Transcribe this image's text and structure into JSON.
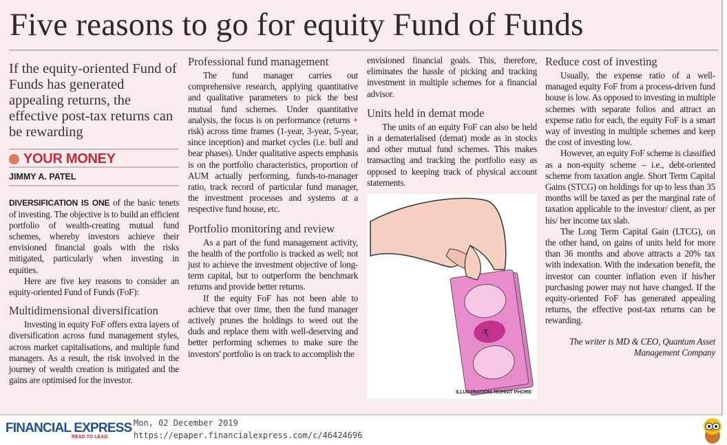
{
  "headline": "Five reasons to go for equity Fund of Funds",
  "deck": "If the equity-oriented Fund of Funds has generated appealing returns, the effective post-tax returns can be rewarding",
  "section": "YOUR MONEY",
  "byline": "JIMMY A. PATEL",
  "colors": {
    "background": "#f8ecec",
    "kicker": "#c8283c",
    "brand": "#1d4f91"
  },
  "col1": {
    "lead": "DIVERSIFICATION IS ONE",
    "intro": " of the basic tenets of investing. The objective is to build an efficient portfolio of wealth-creating mutual fund schemes, whereby investors achieve their envisioned financial goals with the risks mitigated, particularly when investing in equities.",
    "p2": "Here are five key reasons to consider an equity-oriented Fund of Funds (FoF):",
    "h1": "Multidimensional diversification",
    "p3": "Investing in equity FoF offers extra layers of diversification across fund management styles, across market capitalisations, and multiple fund managers. As a result, the risk involved in the journey of wealth creation is mitigated and the gains are optimised for the investor."
  },
  "col2": {
    "h1": "Professional fund management",
    "p1": "The fund manager carries out comprehensive research, applying quantitative and qualitative parameters to pick the best mutual fund schemes. Under quantitative analysis, the focus is on performance (returns + risk) across time frames (1-year, 3-year, 5-year, since inception) and market cycles (i.e. bull and bear phases). Under qualitative aspects emphasis is on the portfolio characteristics, proportion of AUM actually performing, funds-to-manager ratio, track record of particular fund manager, the investment processes and systems at a respective fund house, etc.",
    "h2": "Portfolio monitoring and review",
    "p2": "As a part of the fund management activity, the health of the portfolio is tracked as well; not just to achieve the investment objective of long-term capital, but to outperform the benchmark returns and provide better returns.",
    "p3": "If the equity FoF has not been able to achieve that over time, then the fund manager actively prunes the holdings to weed out the duds and replace them with well-deserving and better performing schemes to make sure the investors' portfolio is on track to accomplish the"
  },
  "col3": {
    "p1": "envisioned financial goals. This, therefore, eliminates the hassle of picking and tracking investment in multiple schemes for a financial advisor.",
    "h1": "Units held in demat mode",
    "p2": "The units of an equity FoF can also be held in a dematerialised (demat) mode as in stocks and other mutual fund schemes. This makes transacting and tracking the portfolio easy as opposed to keeping track of physical account statements.",
    "credit": "ILLUSTRATION: ROHNIT PHORE"
  },
  "col4": {
    "h1": "Reduce cost of investing",
    "p1": "Usually, the expense ratio of a well-managed equity FoF from a process-driven fund house is low. As opposed to investing in multiple schemes with separate folios and attract an expense ratio for each, the equity FoF is a smart way of investing in multiple schemes and keep the cost of investing low.",
    "p2": "However, an equity FoF scheme is classified as a non-equity scheme – i.e., debt-oriented scheme from taxation angle. Short Term Capital Gains (STCG) on holdings for up to less than 35 months will be taxed as per the marginal rate of taxation applicable to the investor/ client, as per his/ her income tax slab.",
    "p3": "The Long Term Capital Gain (LTCG), on the other hand, on gains of units held for more than 36 months and above attracts a 20% tax with indexation. With the indexation benefit, the investor can counter inflation even if his/her purchasing power may not have changed. If the equity-oriented FoF has generated appealing returns, the effective post-tax returns can be rewarding.",
    "signature": "The writer is MD & CEO, Quantum Asset Management Company"
  },
  "footer": {
    "brand": "FINANCIAL EXPRESS",
    "tagline": "READ TO LEAD",
    "date": "Mon, 02 December 2019",
    "url": "https://epaper.financialexpress.com/c/46424696",
    "mascot_icon": "owl-icon"
  }
}
